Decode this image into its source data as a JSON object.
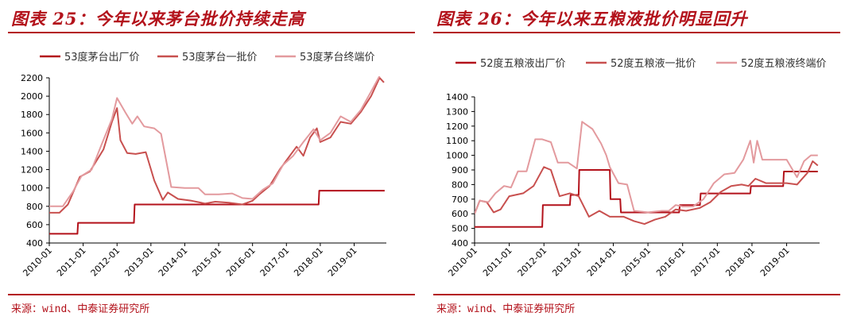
{
  "charts": [
    {
      "title": "图表 25：今年以来茅台批价持续走高",
      "source": "来源：wind、中泰证券研究所",
      "chart_data": {
        "type": "line",
        "xlabel": "",
        "ylabel": "",
        "ylim": [
          400,
          2200
        ],
        "yticks": [
          "400",
          "600",
          "800",
          "1000",
          "1200",
          "1400",
          "1600",
          "1800",
          "2000",
          "2200"
        ],
        "xticks": [
          "2010-01",
          "2011-01",
          "2012-01",
          "2013-01",
          "2014-01",
          "2015-01",
          "2016-01",
          "2017-01",
          "2018-01",
          "2019-01"
        ],
        "xlim": [
          2010.0,
          2019.95
        ],
        "grid": false,
        "legend_position": "top",
        "series": [
          {
            "name": "53度茅台出厂价",
            "color": "#b3121b",
            "points": [
              [
                2010.0,
                500
              ],
              [
                2010.83,
                500
              ],
              [
                2010.85,
                620
              ],
              [
                2012.5,
                620
              ],
              [
                2012.52,
                820
              ],
              [
                2017.95,
                820
              ],
              [
                2017.97,
                970
              ],
              [
                2019.9,
                970
              ]
            ]
          },
          {
            "name": "53度茅台一批价",
            "color": "#c8504f",
            "points": [
              [
                2010.0,
                730
              ],
              [
                2010.3,
                730
              ],
              [
                2010.55,
                820
              ],
              [
                2010.9,
                1120
              ],
              [
                2011.2,
                1180
              ],
              [
                2011.6,
                1420
              ],
              [
                2011.85,
                1720
              ],
              [
                2012.0,
                1870
              ],
              [
                2012.1,
                1520
              ],
              [
                2012.3,
                1380
              ],
              [
                2012.55,
                1370
              ],
              [
                2012.85,
                1390
              ],
              [
                2013.1,
                1080
              ],
              [
                2013.35,
                870
              ],
              [
                2013.5,
                950
              ],
              [
                2013.8,
                880
              ],
              [
                2014.2,
                860
              ],
              [
                2014.6,
                830
              ],
              [
                2014.9,
                850
              ],
              [
                2015.3,
                840
              ],
              [
                2015.7,
                820
              ],
              [
                2016.0,
                860
              ],
              [
                2016.2,
                930
              ],
              [
                2016.5,
                1020
              ],
              [
                2016.8,
                1200
              ],
              [
                2017.0,
                1300
              ],
              [
                2017.3,
                1450
              ],
              [
                2017.5,
                1350
              ],
              [
                2017.7,
                1550
              ],
              [
                2017.9,
                1650
              ],
              [
                2018.0,
                1500
              ],
              [
                2018.3,
                1550
              ],
              [
                2018.6,
                1720
              ],
              [
                2018.9,
                1700
              ],
              [
                2019.2,
                1830
              ],
              [
                2019.5,
                2000
              ],
              [
                2019.75,
                2200
              ],
              [
                2019.88,
                2150
              ]
            ]
          },
          {
            "name": "53度茅台终端价",
            "color": "#e39a9e",
            "points": [
              [
                2010.0,
                800
              ],
              [
                2010.4,
                800
              ],
              [
                2010.7,
                960
              ],
              [
                2010.95,
                1130
              ],
              [
                2011.25,
                1200
              ],
              [
                2011.55,
                1480
              ],
              [
                2011.85,
                1750
              ],
              [
                2012.0,
                1980
              ],
              [
                2012.25,
                1820
              ],
              [
                2012.45,
                1700
              ],
              [
                2012.6,
                1780
              ],
              [
                2012.8,
                1670
              ],
              [
                2013.1,
                1650
              ],
              [
                2013.3,
                1590
              ],
              [
                2013.6,
                1010
              ],
              [
                2014.0,
                1000
              ],
              [
                2014.4,
                1000
              ],
              [
                2014.6,
                930
              ],
              [
                2015.0,
                930
              ],
              [
                2015.4,
                940
              ],
              [
                2015.7,
                890
              ],
              [
                2016.0,
                880
              ],
              [
                2016.3,
                980
              ],
              [
                2016.6,
                1050
              ],
              [
                2016.9,
                1250
              ],
              [
                2017.2,
                1350
              ],
              [
                2017.5,
                1500
              ],
              [
                2017.8,
                1640
              ],
              [
                2018.0,
                1520
              ],
              [
                2018.3,
                1600
              ],
              [
                2018.6,
                1780
              ],
              [
                2018.9,
                1720
              ],
              [
                2019.2,
                1850
              ],
              [
                2019.5,
                2050
              ],
              [
                2019.75,
                2220
              ]
            ]
          }
        ]
      }
    },
    {
      "title": "图表 26：今年以来五粮液批价明显回升",
      "source": "来源：wind、中泰证券研究所",
      "chart_data": {
        "type": "line",
        "xlabel": "",
        "ylabel": "",
        "ylim": [
          400,
          1400
        ],
        "yticks": [
          "400",
          "500",
          "600",
          "700",
          "800",
          "900",
          "1000",
          "1100",
          "1200",
          "1300",
          "1400"
        ],
        "xticks": [
          "2010-01",
          "2011-01",
          "2012-01",
          "2013-01",
          "2014-01",
          "2015-01",
          "2016-01",
          "2017-01",
          "2018-01",
          "2019-01"
        ],
        "xlim": [
          2010.0,
          2019.95
        ],
        "grid": false,
        "legend_position": "top",
        "series": [
          {
            "name": "52度五粮液出厂价",
            "color": "#b3121b",
            "points": [
              [
                2010.0,
                510
              ],
              [
                2011.95,
                510
              ],
              [
                2011.97,
                659
              ],
              [
                2012.75,
                659
              ],
              [
                2012.77,
                729
              ],
              [
                2013.0,
                729
              ],
              [
                2013.02,
                900
              ],
              [
                2013.9,
                900
              ],
              [
                2013.92,
                700
              ],
              [
                2014.2,
                700
              ],
              [
                2014.22,
                609
              ],
              [
                2015.9,
                609
              ],
              [
                2015.92,
                659
              ],
              [
                2016.5,
                659
              ],
              [
                2016.52,
                739
              ],
              [
                2017.95,
                739
              ],
              [
                2017.97,
                789
              ],
              [
                2018.9,
                789
              ],
              [
                2018.92,
                889
              ],
              [
                2019.9,
                889
              ]
            ]
          },
          {
            "name": "52度五粮液一批价",
            "color": "#c8504f",
            "points": [
              [
                2010.0,
                600
              ],
              [
                2010.15,
                690
              ],
              [
                2010.35,
                680
              ],
              [
                2010.55,
                610
              ],
              [
                2010.75,
                630
              ],
              [
                2011.0,
                720
              ],
              [
                2011.4,
                740
              ],
              [
                2011.7,
                790
              ],
              [
                2012.0,
                920
              ],
              [
                2012.2,
                900
              ],
              [
                2012.45,
                720
              ],
              [
                2012.75,
                740
              ],
              [
                2013.0,
                720
              ],
              [
                2013.3,
                580
              ],
              [
                2013.6,
                620
              ],
              [
                2013.9,
                580
              ],
              [
                2014.3,
                580
              ],
              [
                2014.6,
                550
              ],
              [
                2014.9,
                530
              ],
              [
                2015.2,
                560
              ],
              [
                2015.5,
                580
              ],
              [
                2015.8,
                630
              ],
              [
                2016.1,
                620
              ],
              [
                2016.5,
                640
              ],
              [
                2016.8,
                680
              ],
              [
                2017.1,
                750
              ],
              [
                2017.4,
                790
              ],
              [
                2017.7,
                800
              ],
              [
                2017.9,
                790
              ],
              [
                2018.1,
                840
              ],
              [
                2018.4,
                810
              ],
              [
                2018.7,
                810
              ],
              [
                2019.0,
                810
              ],
              [
                2019.3,
                800
              ],
              [
                2019.6,
                880
              ],
              [
                2019.75,
                960
              ],
              [
                2019.9,
                930
              ]
            ]
          },
          {
            "name": "52度五粮液终端价",
            "color": "#e39a9e",
            "points": [
              [
                2010.0,
                600
              ],
              [
                2010.15,
                690
              ],
              [
                2010.4,
                680
              ],
              [
                2010.6,
                740
              ],
              [
                2010.85,
                790
              ],
              [
                2011.05,
                780
              ],
              [
                2011.25,
                890
              ],
              [
                2011.5,
                890
              ],
              [
                2011.75,
                1110
              ],
              [
                2011.95,
                1110
              ],
              [
                2012.2,
                1090
              ],
              [
                2012.4,
                950
              ],
              [
                2012.7,
                950
              ],
              [
                2012.95,
                910
              ],
              [
                2013.1,
                1230
              ],
              [
                2013.4,
                1180
              ],
              [
                2013.65,
                1080
              ],
              [
                2013.8,
                1000
              ],
              [
                2013.9,
                920
              ],
              [
                2014.15,
                810
              ],
              [
                2014.4,
                800
              ],
              [
                2014.6,
                620
              ],
              [
                2015.0,
                610
              ],
              [
                2015.4,
                620
              ],
              [
                2015.6,
                620
              ],
              [
                2015.8,
                660
              ],
              [
                2016.0,
                650
              ],
              [
                2016.3,
                650
              ],
              [
                2016.6,
                700
              ],
              [
                2016.9,
                810
              ],
              [
                2017.2,
                870
              ],
              [
                2017.5,
                880
              ],
              [
                2017.75,
                970
              ],
              [
                2017.95,
                1100
              ],
              [
                2018.05,
                950
              ],
              [
                2018.15,
                1100
              ],
              [
                2018.3,
                970
              ],
              [
                2018.7,
                970
              ],
              [
                2019.0,
                970
              ],
              [
                2019.3,
                850
              ],
              [
                2019.5,
                960
              ],
              [
                2019.7,
                1000
              ],
              [
                2019.9,
                1000
              ]
            ]
          }
        ]
      }
    }
  ]
}
